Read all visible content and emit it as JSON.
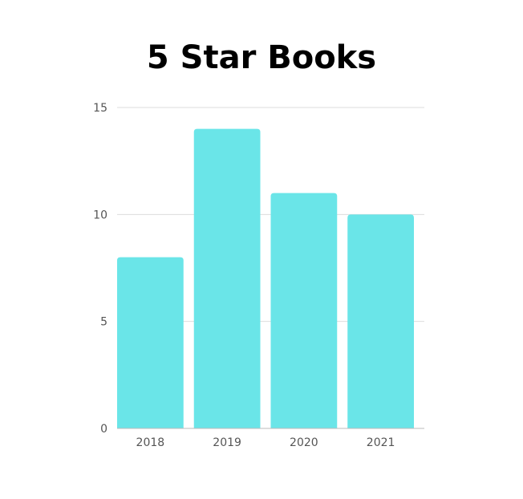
{
  "chart_data": {
    "type": "bar",
    "title": "5 Star Books",
    "categories": [
      "2018",
      "2019",
      "2020",
      "2021"
    ],
    "values": [
      8,
      14,
      11,
      10
    ],
    "xlabel": "",
    "ylabel": "",
    "ylim": [
      0,
      15
    ],
    "yticks": [
      "0",
      "5",
      "10",
      "15"
    ],
    "grid": true,
    "legend": "none",
    "colors": {
      "bar": "#6ae5e8",
      "grid": "#dddddd",
      "axis": "#bbbbbb",
      "tick_text": "#555555",
      "title": "#000000"
    }
  }
}
